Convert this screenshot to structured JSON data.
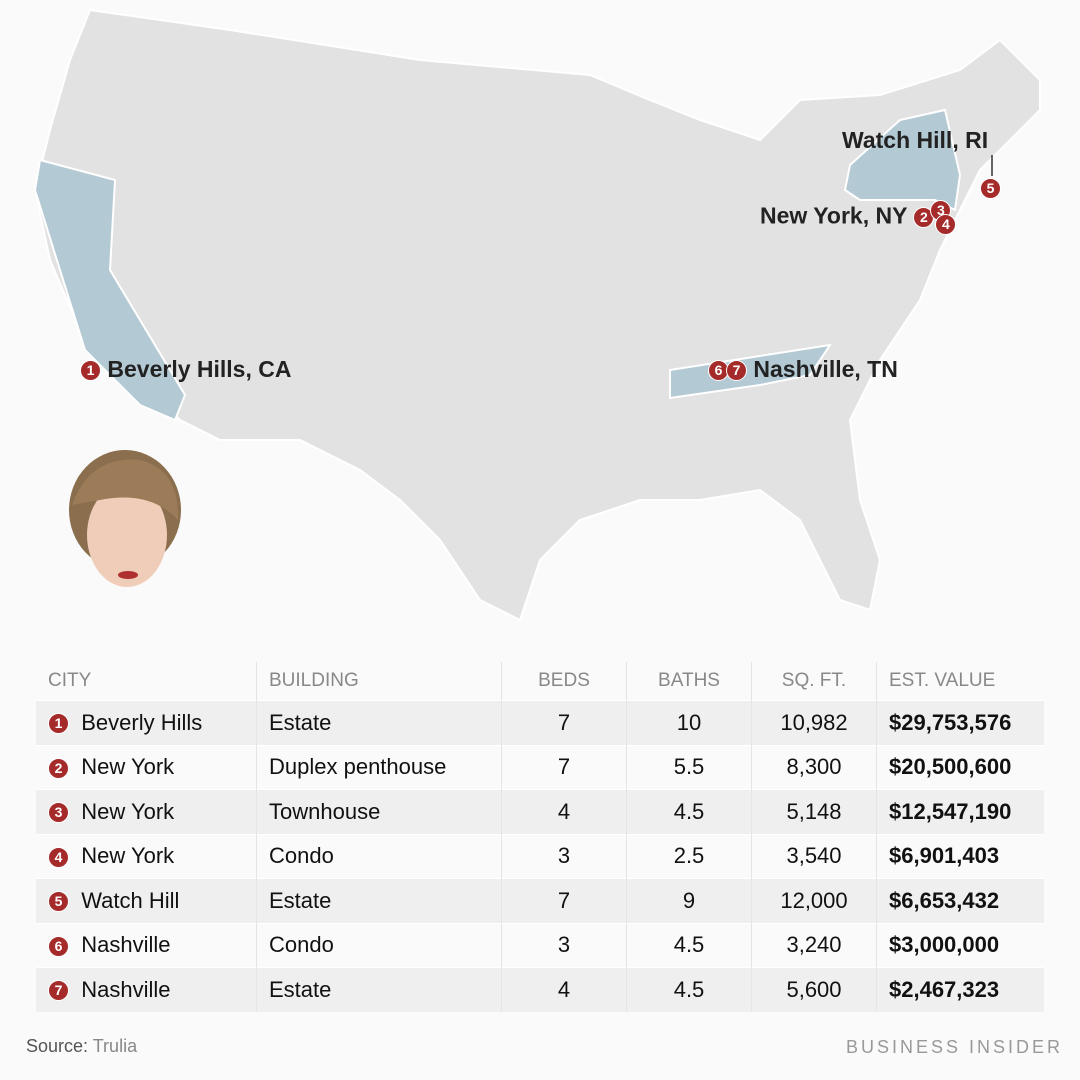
{
  "map": {
    "highlight_color": "#b3c9d4",
    "land_color": "#e2e2e2",
    "marker_color": "#a52a2a",
    "labels": [
      {
        "markers": [
          "1"
        ],
        "text": "Beverly Hills, CA"
      },
      {
        "markers": [
          "2",
          "3",
          "4"
        ],
        "text": "New York, NY"
      },
      {
        "markers": [
          "5"
        ],
        "text": "Watch Hill, RI"
      },
      {
        "markers": [
          "6",
          "7"
        ],
        "text": "Nashville, TN"
      }
    ]
  },
  "table": {
    "headers": [
      "CITY",
      "BUILDING",
      "BEDS",
      "BATHS",
      "SQ. FT.",
      "EST. VALUE"
    ],
    "rows": [
      {
        "n": "1",
        "city": "Beverly Hills",
        "building": "Estate",
        "beds": "7",
        "baths": "10",
        "sqft": "10,982",
        "value": "$29,753,576"
      },
      {
        "n": "2",
        "city": "New York",
        "building": "Duplex penthouse",
        "beds": "7",
        "baths": "5.5",
        "sqft": "8,300",
        "value": "$20,500,600"
      },
      {
        "n": "3",
        "city": "New York",
        "building": "Townhouse",
        "beds": "4",
        "baths": "4.5",
        "sqft": "5,148",
        "value": "$12,547,190"
      },
      {
        "n": "4",
        "city": "New York",
        "building": "Condo",
        "beds": "3",
        "baths": "2.5",
        "sqft": "3,540",
        "value": "$6,901,403"
      },
      {
        "n": "5",
        "city": "Watch Hill",
        "building": "Estate",
        "beds": "7",
        "baths": "9",
        "sqft": "12,000",
        "value": "$6,653,432"
      },
      {
        "n": "6",
        "city": "Nashville",
        "building": "Condo",
        "beds": "3",
        "baths": "4.5",
        "sqft": "3,240",
        "value": "$3,000,000"
      },
      {
        "n": "7",
        "city": "Nashville",
        "building": "Estate",
        "beds": "4",
        "baths": "4.5",
        "sqft": "5,600",
        "value": "$2,467,323"
      }
    ]
  },
  "footer": {
    "source_label": "Source:",
    "source": "Trulia",
    "brand": "BUSINESS INSIDER"
  }
}
